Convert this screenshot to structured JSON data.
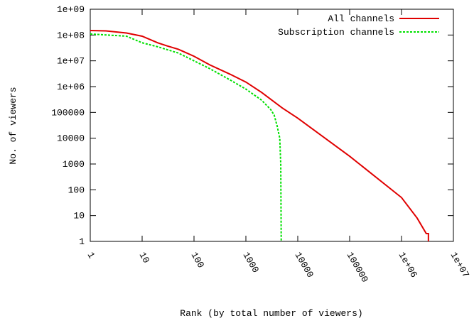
{
  "chart_data": {
    "type": "line",
    "xlabel": "Rank (by total number of viewers)",
    "ylabel": "No. of viewers",
    "xscale": "log",
    "yscale": "log",
    "xlim": [
      1,
      10000000
    ],
    "ylim": [
      1,
      1000000000
    ],
    "xticks": [
      1,
      10,
      100,
      1000,
      10000,
      100000,
      {
        "value": 1000000,
        "label": "1e+06"
      },
      {
        "value": 10000000,
        "label": "1e+07"
      }
    ],
    "yticks": [
      1,
      10,
      100,
      1000,
      10000,
      100000,
      {
        "value": 1000000,
        "label": "1e+06"
      },
      {
        "value": 10000000,
        "label": "1e+07"
      },
      {
        "value": 100000000,
        "label": "1e+08"
      },
      {
        "value": 1000000000,
        "label": "1e+09"
      }
    ],
    "legend": "upper right",
    "series": [
      {
        "name": "All channels",
        "color": "#e00000",
        "dash": "solid",
        "x": [
          1,
          2,
          5,
          10,
          20,
          30,
          50,
          100,
          200,
          500,
          1000,
          2000,
          5000,
          10000,
          100000,
          1000000,
          2000000,
          3000000,
          3300000,
          3300000
        ],
        "values": [
          150000000,
          145000000,
          120000000,
          90000000,
          50000000,
          38000000,
          28000000,
          15000000,
          7000000,
          3000000,
          1500000,
          600000,
          150000,
          60000,
          2000,
          50,
          8,
          2,
          2,
          1
        ]
      },
      {
        "name": "Subscription channels",
        "color": "#00e000",
        "dash": "dashed",
        "x": [
          1,
          5,
          10,
          20,
          50,
          100,
          200,
          500,
          1000,
          2000,
          3000,
          3500,
          4000,
          4500,
          4700,
          4800
        ],
        "values": [
          110000000,
          90000000,
          50000000,
          35000000,
          20000000,
          10000000,
          5000000,
          1800000,
          800000,
          300000,
          130000,
          80000,
          30000,
          10000,
          1000,
          1
        ]
      }
    ]
  }
}
